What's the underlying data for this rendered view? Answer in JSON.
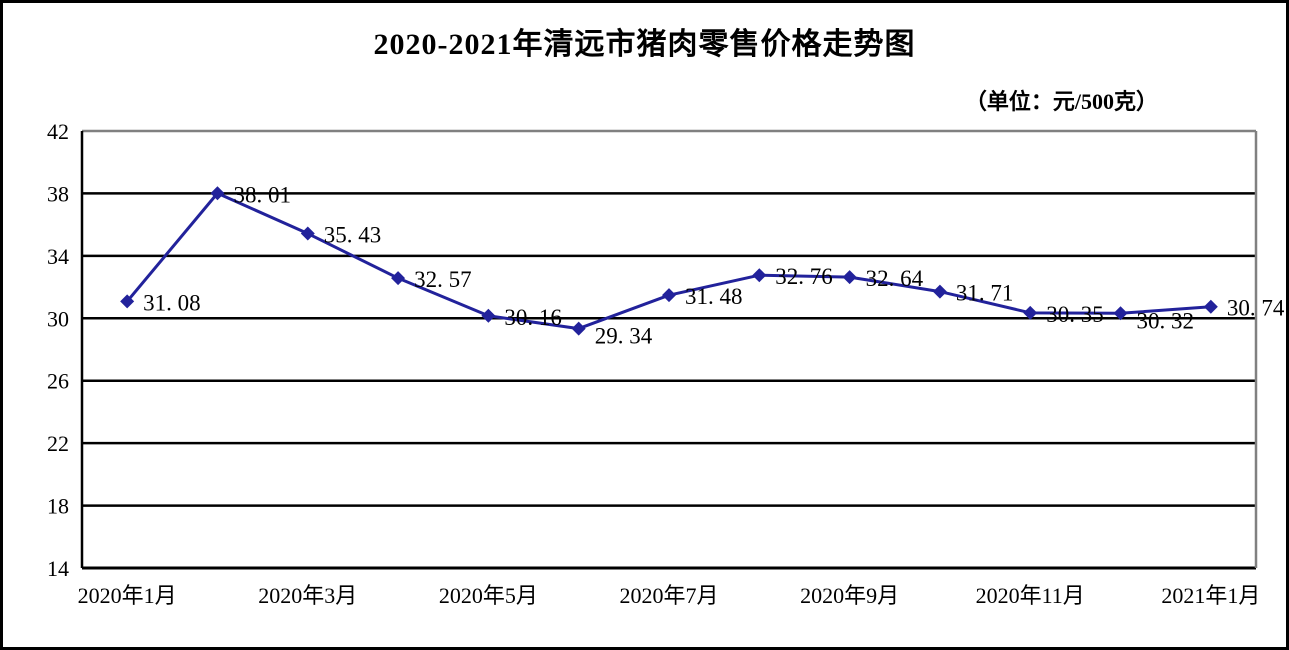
{
  "chart": {
    "title": "2020-2021年清远市猪肉零售价格走势图",
    "unit_label": "（单位：元/500克）"
  },
  "chart_data": {
    "type": "line",
    "title": "2020-2021年清远市猪肉零售价格走势图",
    "unit": "元/500克",
    "series": [
      {
        "name": "猪肉零售价格",
        "values": [
          31.08,
          38.01,
          35.43,
          32.57,
          30.16,
          29.34,
          31.48,
          32.76,
          32.64,
          31.71,
          30.35,
          30.32,
          30.74
        ],
        "point_labels": [
          "31. 08",
          "38. 01",
          "35. 43",
          "32. 57",
          "30. 16",
          "29. 34",
          "31. 48",
          "32. 76",
          "32. 64",
          "31. 71",
          "30. 35",
          "30. 32",
          "30. 74"
        ]
      }
    ],
    "x_tick_labels": [
      "2020年1月",
      "2020年3月",
      "2020年5月",
      "2020年7月",
      "2020年9月",
      "2020年11月",
      "2021年1月"
    ],
    "x_tick_every": 2,
    "y_ticks": [
      14,
      18,
      22,
      26,
      30,
      34,
      38,
      42
    ],
    "ylim": [
      14,
      42
    ],
    "grid": true,
    "legend": "none",
    "line_color": "#22229b",
    "marker": "diamond",
    "grid_color": "#000000",
    "top_right_border_color": "#808080",
    "text_color": "#000000"
  }
}
